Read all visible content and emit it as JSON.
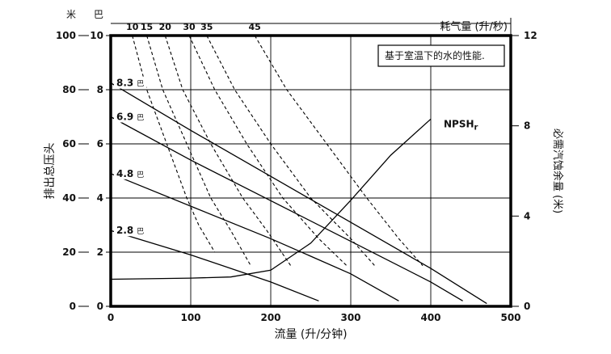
{
  "chart_data": {
    "type": "line",
    "xlabel": "流量 (升/分钟)",
    "xlim": [
      0,
      500
    ],
    "x_ticks": [
      "0",
      "100",
      "200",
      "300",
      "400",
      "500"
    ],
    "y_left_label": "排出总压头",
    "y_left_unit_m": "米",
    "y_left_unit_bar": "巴",
    "ylim_m": [
      0,
      100
    ],
    "y_m_ticks": [
      "0",
      "20",
      "40",
      "60",
      "80",
      "100"
    ],
    "ylim_bar": [
      0,
      10
    ],
    "y_bar_ticks": [
      "0",
      "2",
      "4",
      "6",
      "8",
      "10"
    ],
    "y_right_label": "必需汽蚀余量 (米)",
    "ylim_right_m": [
      0,
      12
    ],
    "y_right_ticks": [
      "0",
      "4",
      "8",
      "12"
    ],
    "top_label": "耗气量 (升/秒)",
    "note": "基于室温下的水的性能.",
    "grid": true,
    "pressure_curves": [
      {
        "label": "8.3",
        "unit": "巴",
        "x": [
          0,
          100,
          200,
          300,
          400,
          470
        ],
        "y": [
          82.5,
          65,
          48,
          31,
          14,
          1
        ]
      },
      {
        "label": "6.9",
        "unit": "巴",
        "x": [
          0,
          100,
          200,
          300,
          400,
          440
        ],
        "y": [
          70,
          54,
          39,
          24,
          9,
          2
        ]
      },
      {
        "label": "4.8",
        "unit": "巴",
        "x": [
          0,
          100,
          200,
          300,
          360
        ],
        "y": [
          49,
          37,
          25,
          12,
          2
        ]
      },
      {
        "label": "2.8",
        "unit": "巴",
        "x": [
          0,
          100,
          200,
          260
        ],
        "y": [
          28,
          19,
          9,
          2
        ]
      }
    ],
    "air_consumption_curves": [
      {
        "label": "10",
        "x": [
          27,
          45,
          70,
          95,
          110,
          130
        ],
        "y": [
          100,
          80,
          60,
          40,
          30,
          20
        ]
      },
      {
        "label": "15",
        "x": [
          45,
          65,
          95,
          125,
          150,
          175
        ],
        "y": [
          100,
          80,
          60,
          40,
          28,
          15
        ]
      },
      {
        "label": "20",
        "x": [
          68,
          90,
          125,
          165,
          195,
          225
        ],
        "y": [
          100,
          80,
          60,
          40,
          28,
          15
        ]
      },
      {
        "label": "30",
        "x": [
          98,
          130,
          170,
          215,
          260,
          295
        ],
        "y": [
          100,
          80,
          60,
          40,
          25,
          15
        ]
      },
      {
        "label": "35",
        "x": [
          120,
          155,
          200,
          250,
          300,
          330
        ],
        "y": [
          100,
          80,
          60,
          40,
          25,
          15
        ]
      },
      {
        "label": "45",
        "x": [
          180,
          220,
          270,
          320,
          360,
          390
        ],
        "y": [
          100,
          80,
          60,
          40,
          25,
          15
        ]
      }
    ],
    "npsh": {
      "label": "NPSHr",
      "x": [
        0,
        100,
        150,
        200,
        250,
        300,
        350,
        400
      ],
      "y": [
        1.2,
        1.25,
        1.3,
        1.6,
        2.8,
        4.7,
        6.7,
        8.3
      ]
    }
  }
}
